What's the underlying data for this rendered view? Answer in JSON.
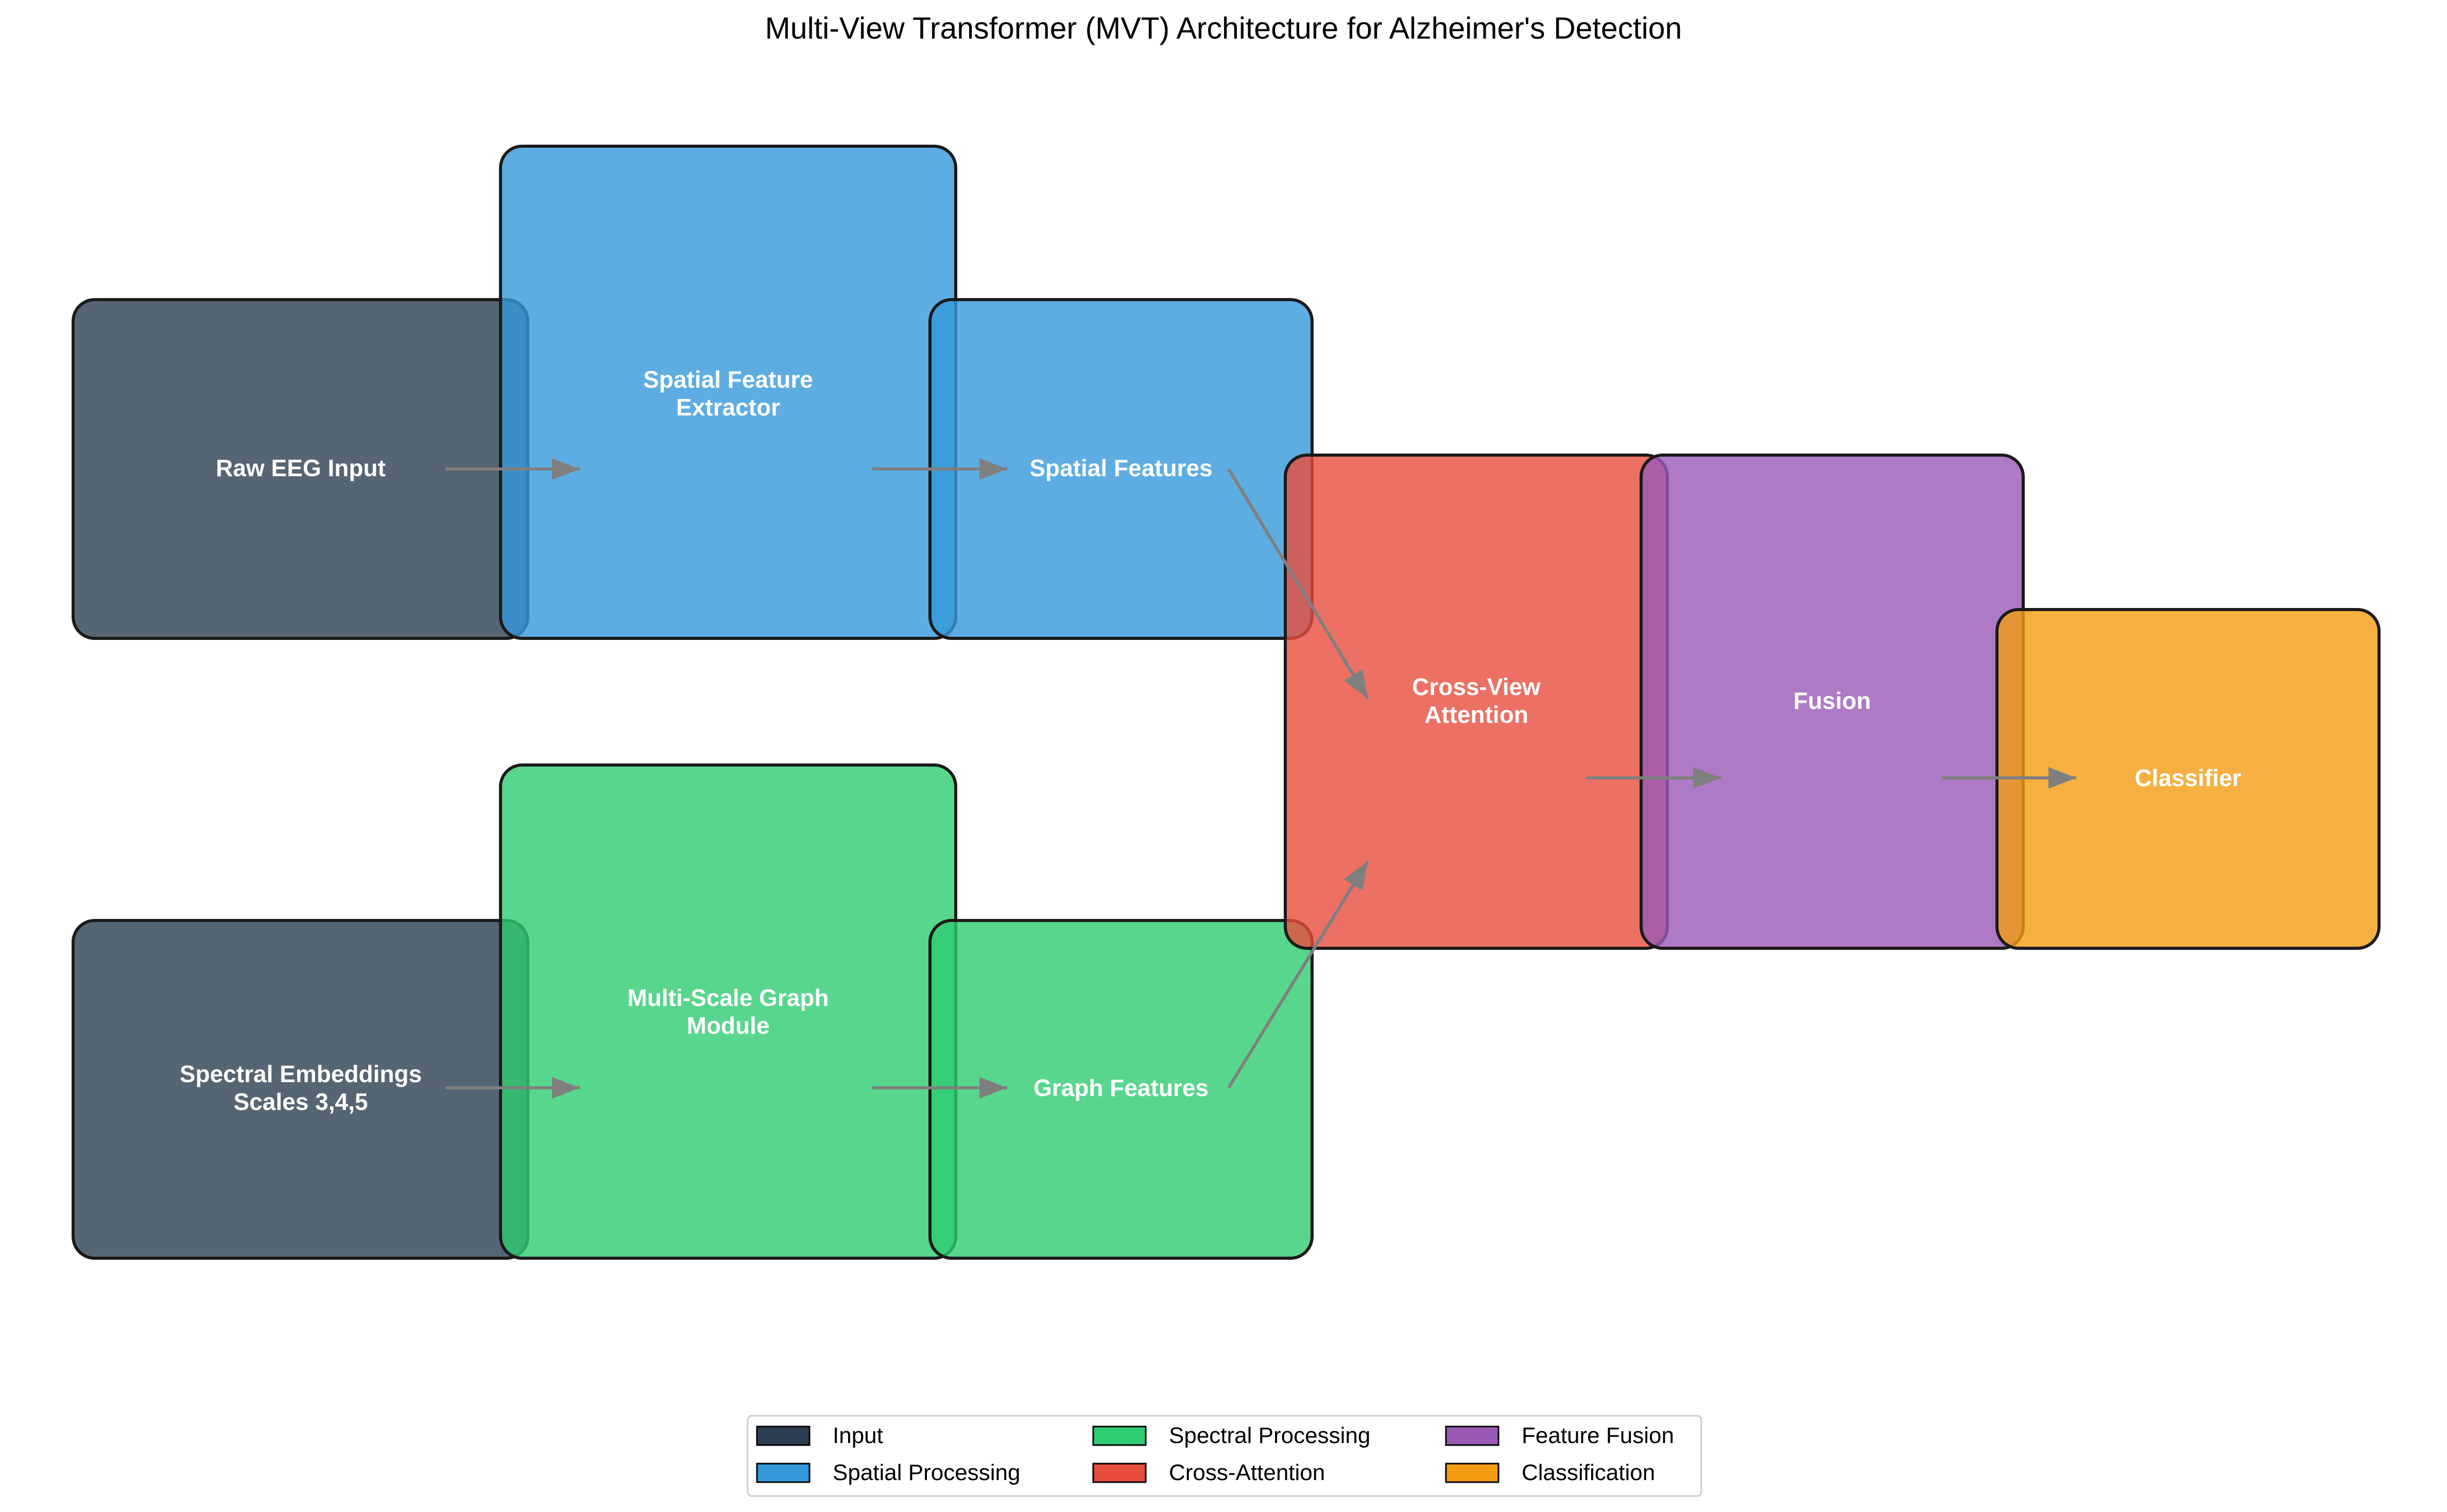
{
  "title": "Multi-View Transformer (MVT) Architecture for Alzheimer's Detection",
  "colors": {
    "input": "#2c3e50",
    "spatial": "#3498db",
    "spectral": "#2ecc71",
    "cross_attention": "#e74c3c",
    "fusion": "#9b59b6",
    "classification": "#f39c12",
    "arrow": "#7f7f7f",
    "border": "#1a1a1a"
  },
  "nodes": [
    {
      "id": "raw-eeg-input",
      "lines": [
        "Raw EEG Input"
      ],
      "category": "input"
    },
    {
      "id": "spatial-feature-extractor",
      "lines": [
        "Spatial Feature",
        "Extractor"
      ],
      "category": "spatial"
    },
    {
      "id": "spatial-features",
      "lines": [
        "Spatial Features"
      ],
      "category": "spatial"
    },
    {
      "id": "spectral-embeddings",
      "lines": [
        "Spectral Embeddings",
        "Scales 3,4,5"
      ],
      "category": "input"
    },
    {
      "id": "multi-scale-graph-module",
      "lines": [
        "Multi-Scale Graph",
        "Module"
      ],
      "category": "spectral"
    },
    {
      "id": "graph-features",
      "lines": [
        "Graph Features"
      ],
      "category": "spectral"
    },
    {
      "id": "cross-view-attention",
      "lines": [
        "Cross-View",
        "Attention"
      ],
      "category": "cross_attention"
    },
    {
      "id": "fusion",
      "lines": [
        "Fusion"
      ],
      "category": "fusion"
    },
    {
      "id": "classifier",
      "lines": [
        "Classifier"
      ],
      "category": "classification"
    }
  ],
  "edges": [
    {
      "from": "raw-eeg-input",
      "to": "spatial-feature-extractor"
    },
    {
      "from": "spatial-feature-extractor",
      "to": "spatial-features"
    },
    {
      "from": "spectral-embeddings",
      "to": "multi-scale-graph-module"
    },
    {
      "from": "multi-scale-graph-module",
      "to": "graph-features"
    },
    {
      "from": "spatial-features",
      "to": "cross-view-attention"
    },
    {
      "from": "graph-features",
      "to": "cross-view-attention"
    },
    {
      "from": "cross-view-attention",
      "to": "fusion"
    },
    {
      "from": "fusion",
      "to": "classifier"
    }
  ],
  "legend": [
    {
      "label": "Input",
      "category": "input"
    },
    {
      "label": "Spatial Processing",
      "category": "spatial"
    },
    {
      "label": "Spectral Processing",
      "category": "spectral"
    },
    {
      "label": "Cross-Attention",
      "category": "cross_attention"
    },
    {
      "label": "Feature Fusion",
      "category": "fusion"
    },
    {
      "label": "Classification",
      "category": "classification"
    }
  ]
}
